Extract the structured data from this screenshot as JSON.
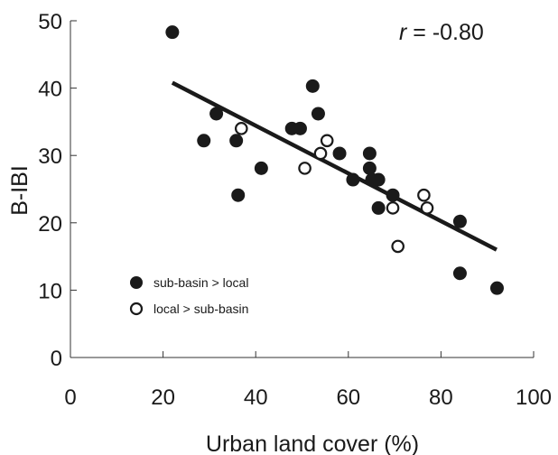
{
  "chart_data": {
    "type": "scatter",
    "xlabel": "Urban land cover (%)",
    "ylabel": "B-IBI",
    "xlim": [
      0,
      100
    ],
    "ylim": [
      0,
      50
    ],
    "x_ticks": [
      0,
      20,
      40,
      60,
      80,
      100
    ],
    "y_ticks": [
      0,
      10,
      20,
      30,
      40,
      50
    ],
    "x_tick_labels": [
      "0",
      "20",
      "40",
      "60",
      "80",
      "100"
    ],
    "y_tick_labels": [
      "0",
      "10",
      "20",
      "30",
      "40",
      "50"
    ],
    "grid": false,
    "legend_position": "bottom-left",
    "annotation": {
      "r_symbol": "r",
      "text": " = -0.80"
    },
    "series": [
      {
        "name": "sub-basin > local",
        "marker": "filled-circle",
        "color": "#1a1a1a",
        "points": [
          {
            "x": 22,
            "y": 48.3
          },
          {
            "x": 28.8,
            "y": 32.2
          },
          {
            "x": 31.5,
            "y": 36.2
          },
          {
            "x": 35.8,
            "y": 32.2
          },
          {
            "x": 36.2,
            "y": 24.1
          },
          {
            "x": 41.2,
            "y": 28.1
          },
          {
            "x": 47.8,
            "y": 34.0
          },
          {
            "x": 49.6,
            "y": 34.0
          },
          {
            "x": 52.3,
            "y": 40.3
          },
          {
            "x": 53.5,
            "y": 36.2
          },
          {
            "x": 58.1,
            "y": 30.3
          },
          {
            "x": 61.0,
            "y": 26.4
          },
          {
            "x": 64.6,
            "y": 30.3
          },
          {
            "x": 64.6,
            "y": 28.1
          },
          {
            "x": 65.1,
            "y": 26.4
          },
          {
            "x": 66.5,
            "y": 26.4
          },
          {
            "x": 66.5,
            "y": 22.2
          },
          {
            "x": 69.6,
            "y": 24.1
          },
          {
            "x": 84.1,
            "y": 20.2
          },
          {
            "x": 84.1,
            "y": 12.5
          },
          {
            "x": 92.1,
            "y": 10.3
          }
        ]
      },
      {
        "name": "local > sub-basin",
        "marker": "open-circle",
        "color": "#1a1a1a",
        "points": [
          {
            "x": 36.9,
            "y": 34.0
          },
          {
            "x": 50.6,
            "y": 28.1
          },
          {
            "x": 54.0,
            "y": 30.3
          },
          {
            "x": 55.4,
            "y": 32.2
          },
          {
            "x": 69.6,
            "y": 22.2
          },
          {
            "x": 70.7,
            "y": 16.5
          },
          {
            "x": 76.3,
            "y": 24.1
          },
          {
            "x": 77.0,
            "y": 22.2
          }
        ]
      }
    ],
    "regression_line": {
      "x": [
        22,
        92
      ],
      "y": [
        40.8,
        16.0
      ]
    }
  }
}
